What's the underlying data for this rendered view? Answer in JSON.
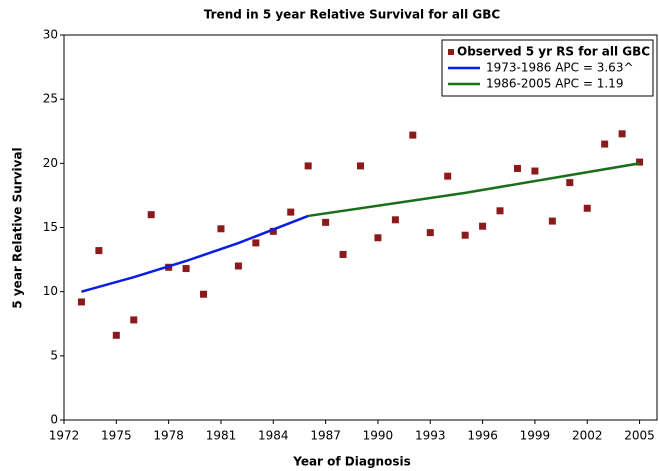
{
  "chart_data": {
    "type": "scatter",
    "title": "Trend in 5 year Relative Survival for all GBC",
    "x_label": "Year of Diagnosis",
    "y_label": "5 year Relative Survival",
    "xlim": [
      1972,
      2006
    ],
    "xticks": [
      1972,
      1975,
      1978,
      1981,
      1984,
      1987,
      1990,
      1993,
      1996,
      1999,
      2002,
      2005
    ],
    "ylim": [
      0,
      30
    ],
    "yticks": [
      0,
      5,
      10,
      15,
      20,
      25,
      30
    ],
    "grid": false,
    "legend": "upper right",
    "series": [
      {
        "name": "Observed 5 yr RS for all GBC",
        "type": "scatter",
        "color": "#8b1a1a",
        "x": [
          1973,
          1974,
          1975,
          1976,
          1977,
          1978,
          1979,
          1980,
          1981,
          1982,
          1983,
          1984,
          1985,
          1986,
          1987,
          1988,
          1989,
          1990,
          1991,
          1992,
          1993,
          1994,
          1995,
          1996,
          1997,
          1998,
          1999,
          2000,
          2001,
          2002,
          2003,
          2004,
          2005
        ],
        "values": [
          9.2,
          13.2,
          6.6,
          7.8,
          16.0,
          11.9,
          11.8,
          9.8,
          14.9,
          12.0,
          13.8,
          14.7,
          16.2,
          19.8,
          15.4,
          12.9,
          19.8,
          14.2,
          15.6,
          22.2,
          14.6,
          19.0,
          14.4,
          15.1,
          16.3,
          19.6,
          19.4,
          15.5,
          18.5,
          16.5,
          21.5,
          22.3,
          20.1
        ]
      },
      {
        "name": "1973-1986 APC  = 3.63^",
        "type": "line",
        "color": "#0a1de6",
        "x": [
          1973,
          1976,
          1979,
          1982,
          1986
        ],
        "values": [
          10.0,
          11.13,
          12.39,
          13.79,
          15.9
        ]
      },
      {
        "name": "1986-2005 APC  = 1.19",
        "type": "line",
        "color": "#1a6e1a",
        "x": [
          1986,
          1995,
          2005
        ],
        "values": [
          15.9,
          17.7,
          20.0
        ]
      }
    ]
  }
}
